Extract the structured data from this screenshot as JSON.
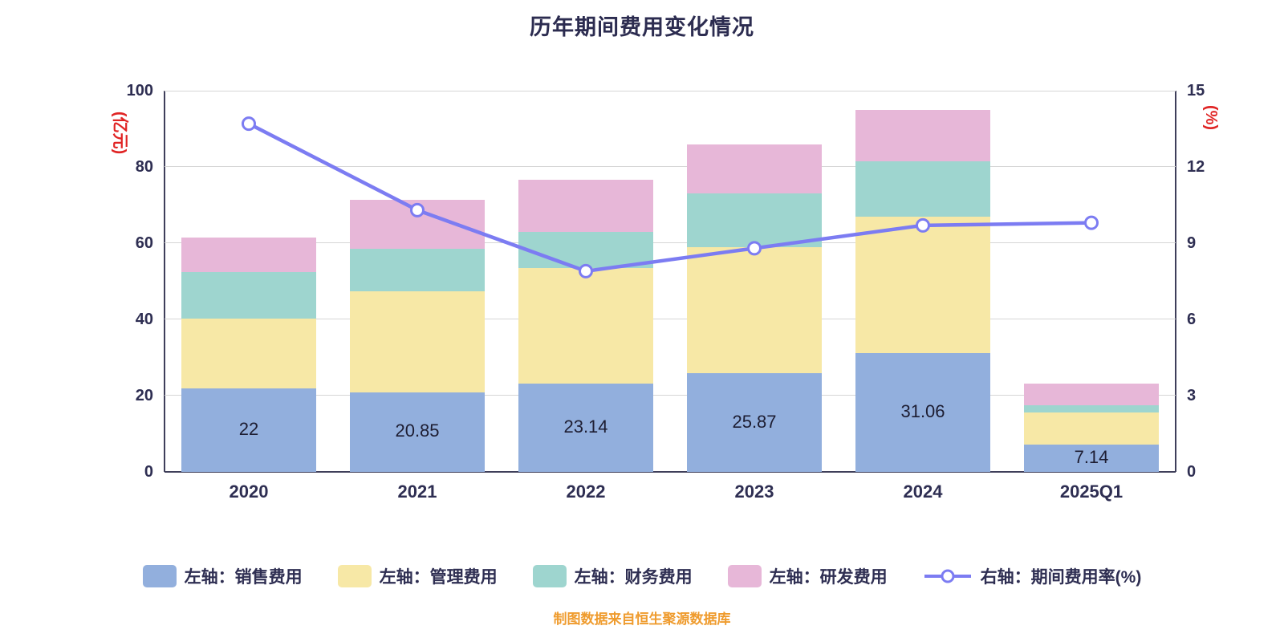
{
  "title": "历年期间费用变化情况",
  "footer": "制图数据来自恒生聚源数据库",
  "chart_data": {
    "type": "bar",
    "stacked": true,
    "title": "历年期间费用变化情况",
    "categories": [
      "2020",
      "2021",
      "2022",
      "2023",
      "2024",
      "2025Q1"
    ],
    "left_axis": {
      "label": "(亿元)",
      "min": 0,
      "max": 100,
      "step": 20
    },
    "right_axis": {
      "label": "(%)",
      "min": 0,
      "max": 15,
      "step": 3
    },
    "grid": true,
    "legend_position": "bottom",
    "series": [
      {
        "name": "左轴：销售费用",
        "type": "bar",
        "axis": "left",
        "color": "#92afdd",
        "values": [
          22,
          20.85,
          23.14,
          25.87,
          31.06,
          7.14
        ],
        "labels": [
          "22",
          "20.85",
          "23.14",
          "25.87",
          "31.06",
          "7.14"
        ]
      },
      {
        "name": "左轴：管理费用",
        "type": "bar",
        "axis": "left",
        "color": "#f7e8a6",
        "values": [
          18.2,
          26.6,
          30.4,
          33.1,
          35.9,
          8.4
        ]
      },
      {
        "name": "左轴：财务费用",
        "type": "bar",
        "axis": "left",
        "color": "#9ed5cf",
        "values": [
          12.3,
          11.0,
          9.5,
          14.0,
          14.5,
          2.0
        ]
      },
      {
        "name": "左轴：研发费用",
        "type": "bar",
        "axis": "left",
        "color": "#e7b7d8",
        "values": [
          9.0,
          13.0,
          13.5,
          13.0,
          13.5,
          5.6
        ]
      },
      {
        "name": "右轴：期间费用率(%)",
        "type": "line",
        "axis": "right",
        "color": "#7c7cf2",
        "values": [
          13.7,
          10.3,
          7.9,
          8.8,
          9.7,
          9.8
        ]
      }
    ]
  }
}
